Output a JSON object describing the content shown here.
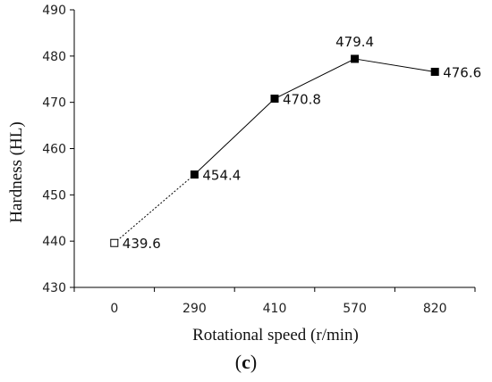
{
  "chart_data": {
    "type": "line",
    "categories": [
      "0",
      "290",
      "410",
      "570",
      "820"
    ],
    "values": [
      439.6,
      454.4,
      470.8,
      479.4,
      476.6
    ],
    "data_labels": [
      "439.6",
      "454.4",
      "470.8",
      "479.4",
      "476.6"
    ],
    "xlabel": "Rotational speed (r/min)",
    "ylabel": "Hardness (HL)",
    "ylim": [
      430,
      490
    ],
    "yticks": [
      "430",
      "440",
      "450",
      "460",
      "470",
      "480",
      "490"
    ],
    "grid": false,
    "first_segment_style": "dotted",
    "first_marker_style": "hollow-square",
    "marker_style": "filled-square",
    "line_color": "#000000"
  },
  "panel_label": {
    "open": "(",
    "letter": "c",
    "close": ")"
  }
}
